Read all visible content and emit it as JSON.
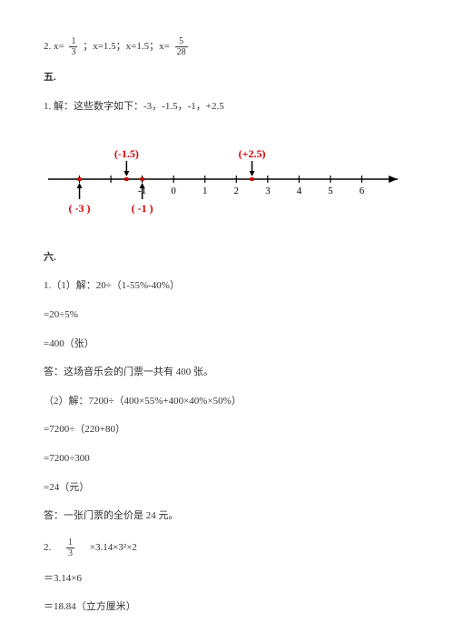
{
  "problem2": {
    "prefix": "2. x=",
    "frac1": {
      "num": "1",
      "den": "3"
    },
    "middle": "；x=1.5；x=1.5；x=",
    "frac2": {
      "num": "5",
      "den": "28"
    }
  },
  "section5": {
    "header": "五.",
    "line1": "1. 解：这些数字如下：-3，-1.5，-1，+2.5"
  },
  "numberline": {
    "start": -4,
    "end": 7,
    "tick_labels": [
      "-1",
      "0",
      "1",
      "2",
      "3",
      "4",
      "5",
      "6"
    ],
    "tick_positions": [
      -1,
      0,
      1,
      2,
      3,
      4,
      5,
      6
    ],
    "marks_above": [
      {
        "val": -1.5,
        "label": "(-1.5)"
      },
      {
        "val": 2.5,
        "label": "(+2.5)"
      }
    ],
    "marks_below": [
      {
        "val": -3,
        "label": "( -3 )"
      },
      {
        "val": -1,
        "label": "( -1 )"
      }
    ],
    "axis_color": "#000000",
    "mark_color": "#d80000"
  },
  "section6": {
    "header": "六.",
    "lines": [
      "1.（1）解：20÷（1-55%-40%）",
      "=20÷5%",
      "=400（张）",
      "答：这场音乐会的门票一共有 400 张。",
      "（2）解：7200÷（400×55%+400×40%×50%）",
      "=7200÷（220+80）",
      "=7200÷300",
      "=24（元）",
      "答：一张门票的全价是 24 元。"
    ],
    "item2": {
      "prefix": "2.　",
      "frac": {
        "num": "1",
        "den": "3"
      },
      "rest": "　×3.14×3²×2"
    },
    "lines_after": [
      "＝3.14×6",
      "＝18.84（立方厘米）"
    ]
  }
}
